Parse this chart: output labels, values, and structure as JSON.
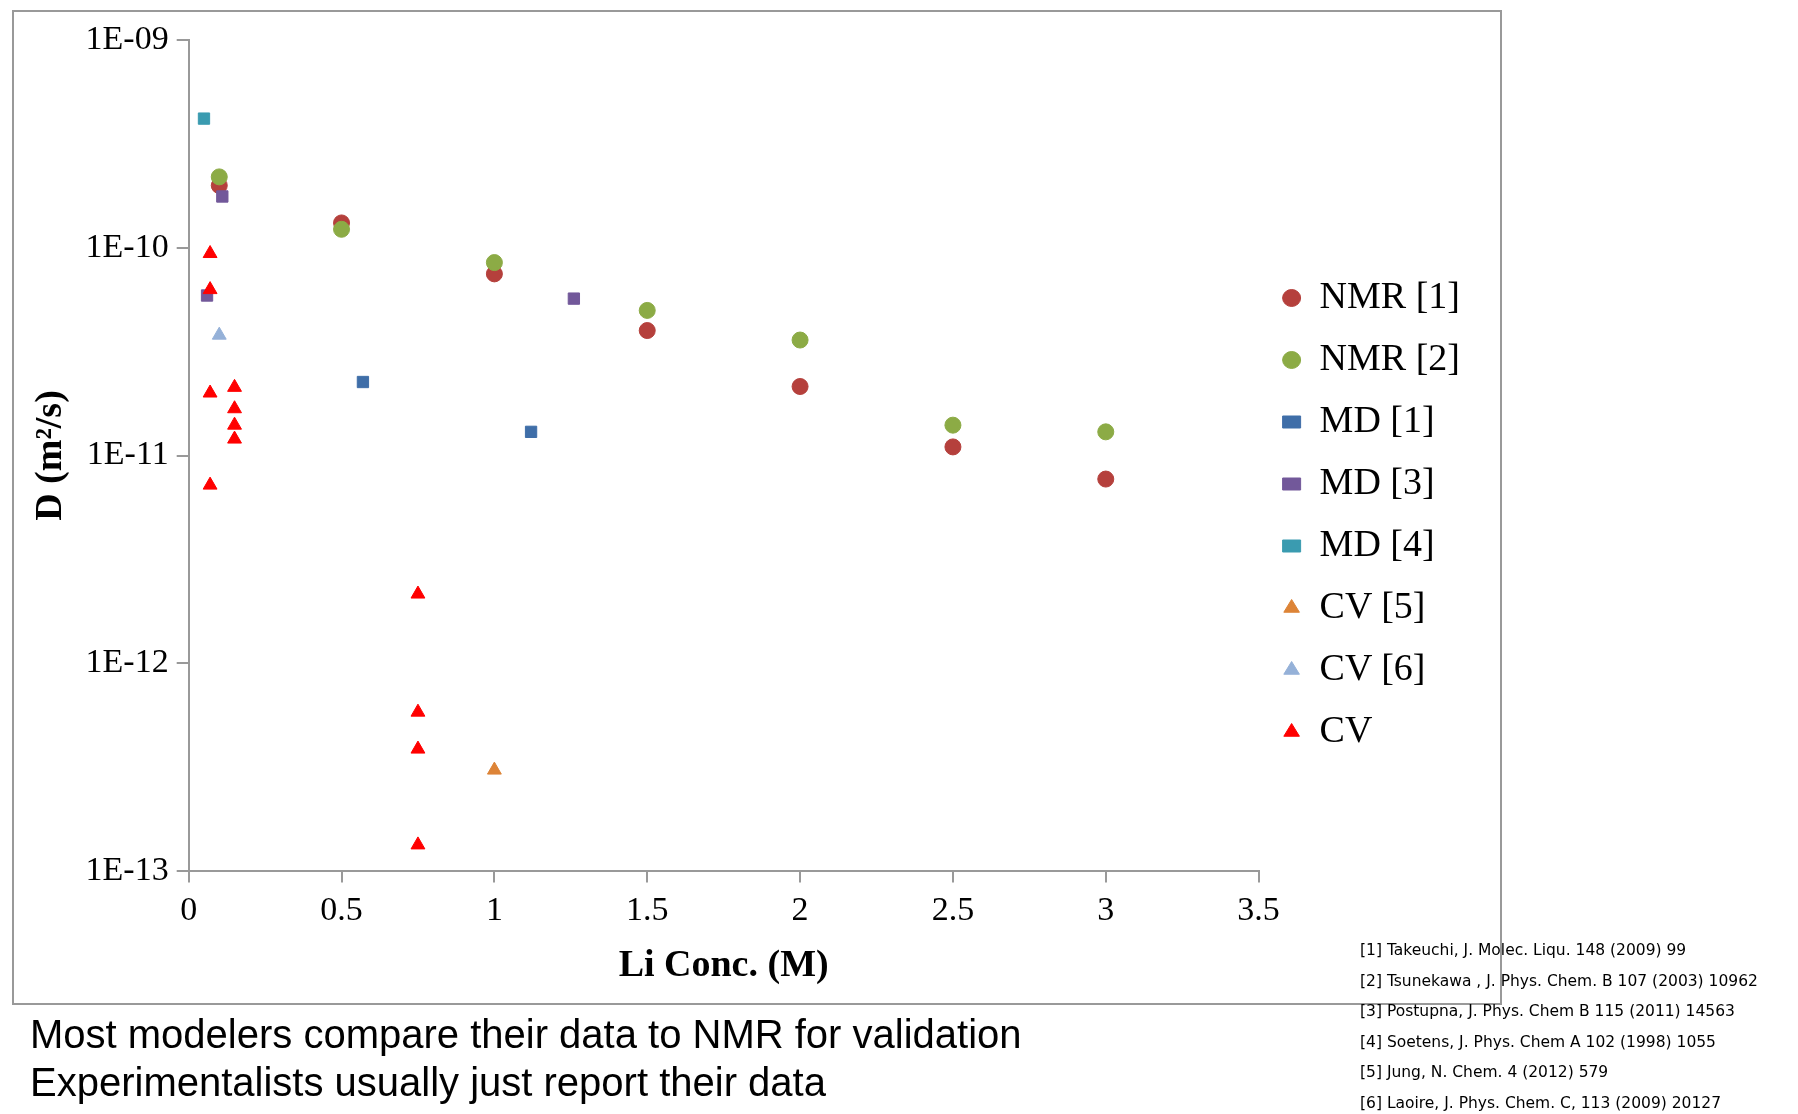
{
  "chart_data": {
    "type": "scatter",
    "xlabel": "Li Conc. (M)",
    "ylabel": "D (m²/s)",
    "log": "y",
    "grid": false,
    "legend": "right",
    "xlim": [
      0,
      3.5
    ],
    "xticks": [
      0,
      0.5,
      1,
      1.5,
      2,
      2.5,
      3,
      3.5
    ],
    "ylim": [
      1e-13,
      1e-09
    ],
    "yticks": [
      {
        "value": 1e-13,
        "label": "1E-13"
      },
      {
        "value": 1e-12,
        "label": "1E-12"
      },
      {
        "value": 1e-11,
        "label": "1E-11"
      },
      {
        "value": 1e-10,
        "label": "1E-10"
      },
      {
        "value": 1e-09,
        "label": "1E-09"
      }
    ],
    "series": [
      {
        "name": "NMR [1]",
        "color": "#b5403c",
        "marker": "circle",
        "x": [
          0.1,
          0.5,
          1,
          1.5,
          2,
          2.5,
          3
        ],
        "values": [
          2e-10,
          1.32e-10,
          7.5e-11,
          4e-11,
          2.15e-11,
          1.1e-11,
          7.7e-12
        ]
      },
      {
        "name": "NMR [2]",
        "color": "#8cab45",
        "marker": "circle",
        "x": [
          0.1,
          0.5,
          1,
          1.5,
          2,
          2.5,
          3
        ],
        "values": [
          2.2e-10,
          1.23e-10,
          8.5e-11,
          5e-11,
          3.6e-11,
          1.4e-11,
          1.3e-11
        ]
      },
      {
        "name": "MD [1]",
        "color": "#3f6ea8",
        "marker": "square",
        "x": [
          0.57,
          1.12
        ],
        "values": [
          2.26e-11,
          1.3e-11
        ]
      },
      {
        "name": "MD [3]",
        "color": "#72589a",
        "marker": "square",
        "x": [
          0.11,
          0.06,
          1.26
        ],
        "values": [
          1.77e-10,
          5.9e-11,
          5.7e-11
        ]
      },
      {
        "name": "MD [4]",
        "color": "#3a9bb0",
        "marker": "square",
        "x": [
          0.05
        ],
        "values": [
          4.2e-10
        ]
      },
      {
        "name": "CV [5]",
        "color": "#dd8437",
        "marker": "triangle",
        "x": [
          1
        ],
        "values": [
          3.05e-13
        ]
      },
      {
        "name": "CV [6]",
        "color": "#95b1d8",
        "marker": "triangle",
        "x": [
          0.1
        ],
        "values": [
          3.8e-11
        ]
      },
      {
        "name": "CV",
        "color": "#ff0000",
        "marker": "triangle",
        "x": [
          0.07,
          0.07,
          0.07,
          0.07,
          0.15,
          0.15,
          0.15,
          0.15,
          0.75,
          0.75,
          0.75,
          0.75
        ],
        "values": [
          9.4e-11,
          6.3e-11,
          2e-11,
          7.2e-12,
          2.13e-11,
          1.68e-11,
          1.4e-11,
          1.2e-11,
          2.15e-12,
          5.8e-13,
          3.85e-13,
          1.33e-13
        ]
      }
    ],
    "annotations": [
      "Most modelers compare their data to NMR for validation",
      "Experimentalists usually just report their data",
      "[1] Takeuchi, J. Molec. Liqu. 148 (2009) 99",
      "[2] Tsunekawa , J. Phys. Chem. B 107 (2003) 10962",
      "[3] Postupna, J. Phys. Chem B 115 (2011) 14563",
      "[4] Soetens, J. Phys. Chem A 102 (1998) 1055",
      "[5] Jung, N. Chem. 4 (2012) 579",
      "[6] Laoire, J. Phys. Chem. C, 113 (2009) 20127"
    ]
  }
}
